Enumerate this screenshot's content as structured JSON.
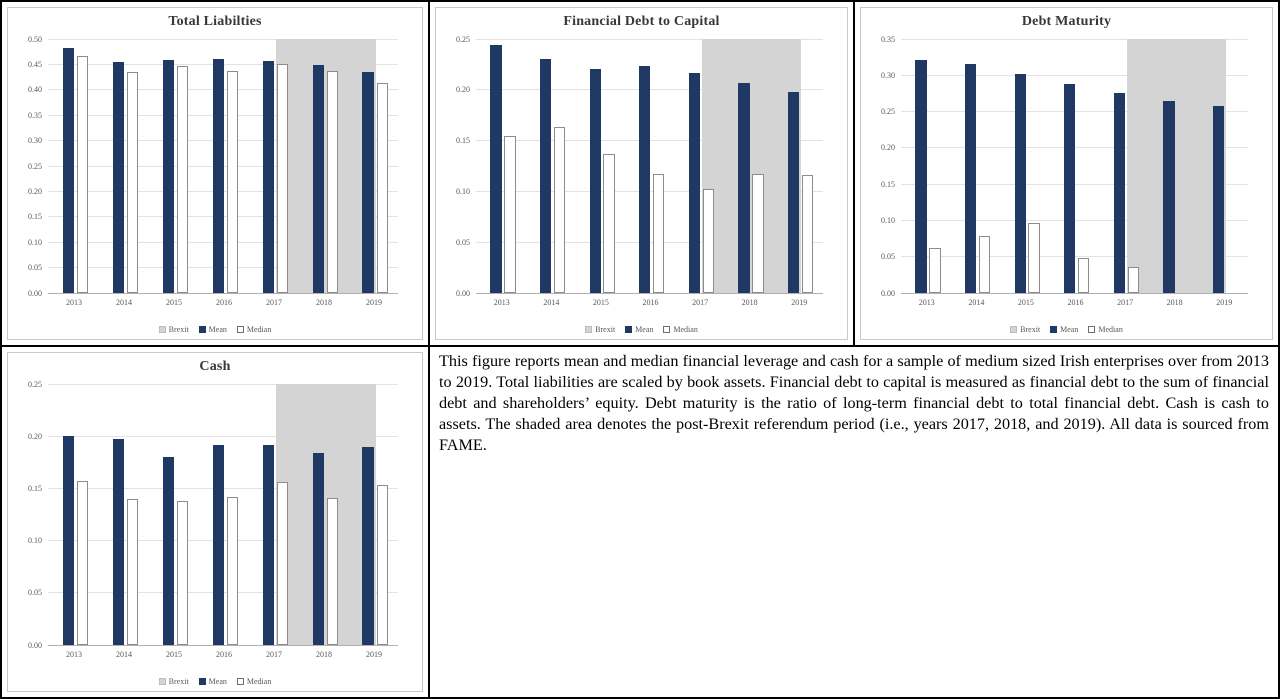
{
  "description": "This figure reports mean and median financial leverage and cash for a sample of medium sized Irish enterprises over from 2013 to 2019. Total liabilities are scaled by book assets. Financial debt to capital is measured as financial debt to the sum of financial debt and shareholders’ equity. Debt maturity is the ratio of long-term financial debt to total financial debt. Cash is cash to assets. The shaded area denotes the post-Brexit referendum period (i.e., years 2017, 2018, and 2019). All data is sourced from FAME.",
  "colors": {
    "mean_bar_navy": "#1F3864",
    "brexit_band_gray": "#D4D4D4",
    "gridline_gray": "#E3E3E3",
    "axis_text_gray": "#585858"
  },
  "chart_data": [
    {
      "type": "bar",
      "title": "Total Liabilties",
      "categories": [
        "2013",
        "2014",
        "2015",
        "2016",
        "2017",
        "2018",
        "2019"
      ],
      "series": [
        {
          "name": "Mean",
          "values": [
            0.483,
            0.454,
            0.458,
            0.461,
            0.457,
            0.449,
            0.435
          ]
        },
        {
          "name": "Median",
          "values": [
            0.466,
            0.435,
            0.447,
            0.438,
            0.451,
            0.437,
            0.413
          ]
        }
      ],
      "brexit_band": {
        "label": "Brexit",
        "from_category": "2017",
        "to_category": "2019",
        "full_height": true
      },
      "ylim": [
        0,
        0.5
      ],
      "ytick_step": 0.05,
      "grid": true,
      "legend": [
        "Brexit",
        "Mean",
        "Median"
      ],
      "legend_position": "bottom"
    },
    {
      "type": "bar",
      "title": "Financial Debt to Capital",
      "categories": [
        "2013",
        "2014",
        "2015",
        "2016",
        "2017",
        "2018",
        "2019"
      ],
      "series": [
        {
          "name": "Mean",
          "values": [
            0.244,
            0.23,
            0.22,
            0.223,
            0.217,
            0.207,
            0.198
          ]
        },
        {
          "name": "Median",
          "values": [
            0.155,
            0.163,
            0.137,
            0.117,
            0.102,
            0.117,
            0.116
          ]
        }
      ],
      "brexit_band": {
        "label": "Brexit",
        "from_category": "2017",
        "to_category": "2019",
        "full_height": true
      },
      "ylim": [
        0,
        0.25
      ],
      "ytick_step": 0.05,
      "grid": true,
      "legend": [
        "Brexit",
        "Mean",
        "Median"
      ],
      "legend_position": "bottom"
    },
    {
      "type": "bar",
      "title": "Debt Maturity",
      "categories": [
        "2013",
        "2014",
        "2015",
        "2016",
        "2017",
        "2018",
        "2019"
      ],
      "series": [
        {
          "name": "Mean",
          "values": [
            0.321,
            0.316,
            0.302,
            0.288,
            0.276,
            0.264,
            0.258
          ]
        },
        {
          "name": "Median",
          "values": [
            0.062,
            0.079,
            0.097,
            0.048,
            0.036,
            0,
            0
          ]
        }
      ],
      "brexit_band": {
        "label": "Brexit",
        "from_category": "2017",
        "to_category": "2019",
        "full_height": true
      },
      "ylim": [
        0,
        0.35
      ],
      "ytick_step": 0.05,
      "grid": true,
      "legend": [
        "Brexit",
        "Mean",
        "Median"
      ],
      "legend_position": "bottom"
    },
    {
      "type": "bar",
      "title": "Cash",
      "categories": [
        "2013",
        "2014",
        "2015",
        "2016",
        "2017",
        "2018",
        "2019"
      ],
      "series": [
        {
          "name": "Mean",
          "values": [
            0.2,
            0.197,
            0.18,
            0.192,
            0.192,
            0.184,
            0.19
          ]
        },
        {
          "name": "Median",
          "values": [
            0.157,
            0.14,
            0.138,
            0.142,
            0.156,
            0.141,
            0.153
          ]
        }
      ],
      "brexit_band": {
        "label": "Brexit",
        "from_category": "2017",
        "to_category": "2019",
        "full_height": true
      },
      "ylim": [
        0,
        0.25
      ],
      "ytick_step": 0.05,
      "grid": true,
      "legend": [
        "Brexit",
        "Mean",
        "Median"
      ],
      "legend_position": "bottom"
    }
  ]
}
